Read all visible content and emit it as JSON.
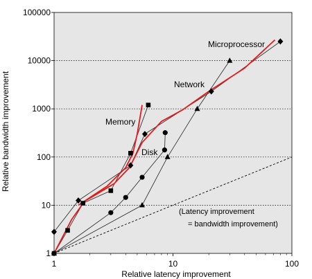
{
  "chart_data": {
    "type": "line",
    "xlabel": "Relative latency improvement",
    "ylabel": "Relative bandwidth improvement",
    "x_scale": "log",
    "y_scale": "log",
    "xlim": [
      1,
      100
    ],
    "ylim": [
      1,
      100000
    ],
    "x_ticks": [
      "1",
      "10",
      "100"
    ],
    "y_ticks": [
      "1",
      "10",
      "100",
      "1000",
      "10000",
      "100000"
    ],
    "grid": "horizontal dotted at each decade",
    "background": "#e6e6e6",
    "series": [
      {
        "name": "Microprocessor",
        "marker": "diamond",
        "points": [
          [
            1,
            2.8
          ],
          [
            1.6,
            12.5
          ],
          [
            4.4,
            67
          ],
          [
            5.8,
            300
          ],
          [
            21,
            2300
          ],
          [
            80,
            25000
          ]
        ]
      },
      {
        "name": "Memory",
        "marker": "square",
        "points": [
          [
            1,
            1
          ],
          [
            1.3,
            3
          ],
          [
            1.75,
            11
          ],
          [
            3,
            20
          ],
          [
            4.4,
            120
          ],
          [
            6.2,
            1200
          ]
        ]
      },
      {
        "name": "Network",
        "marker": "triangle",
        "points": [
          [
            1,
            1
          ],
          [
            5.5,
            10
          ],
          [
            9,
            100
          ],
          [
            16,
            1000
          ],
          [
            30,
            10000
          ]
        ]
      },
      {
        "name": "Disk",
        "marker": "circle",
        "points": [
          [
            1,
            1
          ],
          [
            3,
            7
          ],
          [
            4,
            14.5
          ],
          [
            5.5,
            38
          ],
          [
            8.5,
            140
          ],
          [
            8.6,
            320
          ]
        ]
      },
      {
        "name": "",
        "style": "red trend line",
        "color": "#e31a1c",
        "points": [
          [
            1,
            1
          ],
          [
            1.4,
            5
          ],
          [
            1.8,
            12
          ],
          [
            3.2,
            28
          ],
          [
            4.3,
            60
          ],
          [
            5.5,
            200
          ],
          [
            8,
            550
          ],
          [
            12,
            950
          ],
          [
            20,
            2300
          ],
          [
            40,
            7000
          ],
          [
            72,
            27000
          ]
        ]
      },
      {
        "name": "",
        "style": "red trend line",
        "color": "#e31a1c",
        "points": [
          [
            1.6,
            10
          ],
          [
            2.8,
            25
          ],
          [
            4,
            60
          ],
          [
            4.6,
            120
          ],
          [
            5,
            300
          ],
          [
            5.5,
            1200
          ]
        ]
      }
    ],
    "reference_line": {
      "label_line1": "(Latency improvement",
      "label_line2": "= bandwidth improvement)",
      "points": [
        [
          1,
          1
        ],
        [
          100,
          100
        ]
      ],
      "style": "dashed"
    }
  }
}
